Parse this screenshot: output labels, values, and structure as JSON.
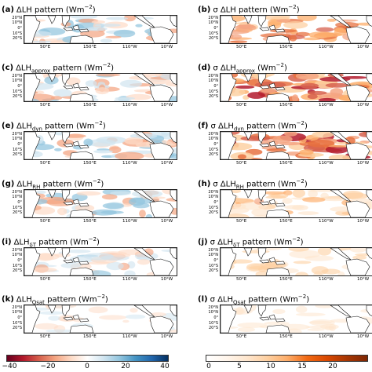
{
  "panels": [
    {
      "label": "(a)",
      "pre": "ΔLH",
      "sub": "",
      "post": " pattern (Wm",
      "sup": "−2",
      "end": ")",
      "style": "div",
      "intensity": 0.55
    },
    {
      "label": "(b)",
      "pre": "σ ΔLH",
      "sub": "",
      "post": " pattern (Wm",
      "sup": "−2",
      "end": ")",
      "style": "seq",
      "intensity": 0.6
    },
    {
      "label": "(c)",
      "pre": "ΔLH",
      "sub": "approx",
      "post": " pattern (Wm",
      "sup": "−2",
      "end": ")",
      "style": "div",
      "intensity": 0.55
    },
    {
      "label": "(d)",
      "pre": "σ ΔLH",
      "sub": "approx",
      "post": " (Wm",
      "sup": "−2",
      "end": ")",
      "style": "seq",
      "intensity": 0.85
    },
    {
      "label": "(e)",
      "pre": "ΔLH",
      "sub": "dyn",
      "post": " pattern (Wm",
      "sup": "−2",
      "end": ")",
      "style": "div",
      "intensity": 0.6
    },
    {
      "label": "(f)",
      "pre": "σ ΔLH",
      "sub": "dyn",
      "post": " pattern (Wm",
      "sup": "−2",
      "end": ")",
      "style": "seq",
      "intensity": 0.85
    },
    {
      "label": "(g)",
      "pre": "ΔLH",
      "sub": "RH",
      "post": " pattern (Wm",
      "sup": "−2",
      "end": ")",
      "style": "div",
      "intensity": 0.5
    },
    {
      "label": "(h)",
      "pre": "σ ΔLH",
      "sub": "RH",
      "post": " pattern (Wm",
      "sup": "−2",
      "end": ")",
      "style": "seq",
      "intensity": 0.45
    },
    {
      "label": "(i)",
      "pre": "ΔLH",
      "sub": "δT",
      "post": " pattern (Wm",
      "sup": "−2",
      "end": ")",
      "style": "div",
      "intensity": 0.35
    },
    {
      "label": "(j)",
      "pre": "σ ΔLH",
      "sub": "δT",
      "post": " pattern (Wm",
      "sup": "−2",
      "end": ")",
      "style": "seq",
      "intensity": 0.25
    },
    {
      "label": "(k)",
      "pre": "ΔLH",
      "sub": "Qsat",
      "post": " pattern (Wm",
      "sup": "−2",
      "end": ")",
      "style": "div",
      "intensity": 0.1
    },
    {
      "label": "(l)",
      "pre": "σ ΔLH",
      "sub": "Qsat",
      "post": " pattern (Wm",
      "sup": "−2",
      "end": ")",
      "style": "seq",
      "intensity": 0.1
    }
  ],
  "lat_labels": [
    "20°N",
    "10°N",
    "0°",
    "10°S",
    "20°S"
  ],
  "lon_labels": [
    "50°E",
    "150°E",
    "110°W",
    "10°W"
  ],
  "colorbars": {
    "left": {
      "ticks": [
        "−40",
        "−20",
        "0",
        "20",
        "40"
      ],
      "colors": [
        "#67001f",
        "#b2182b",
        "#d6604d",
        "#f4a582",
        "#fddbc7",
        "#ffffff",
        "#d1e5f0",
        "#92c5de",
        "#4393c3",
        "#2166ac",
        "#053061"
      ]
    },
    "right": {
      "ticks": [
        "0",
        "5",
        "10",
        "15",
        "20"
      ],
      "colors": [
        "#ffffff",
        "#fff5eb",
        "#fee6ce",
        "#fdd0a2",
        "#fdae6b",
        "#f16913",
        "#d94801",
        "#a63603",
        "#7f2704"
      ]
    }
  }
}
